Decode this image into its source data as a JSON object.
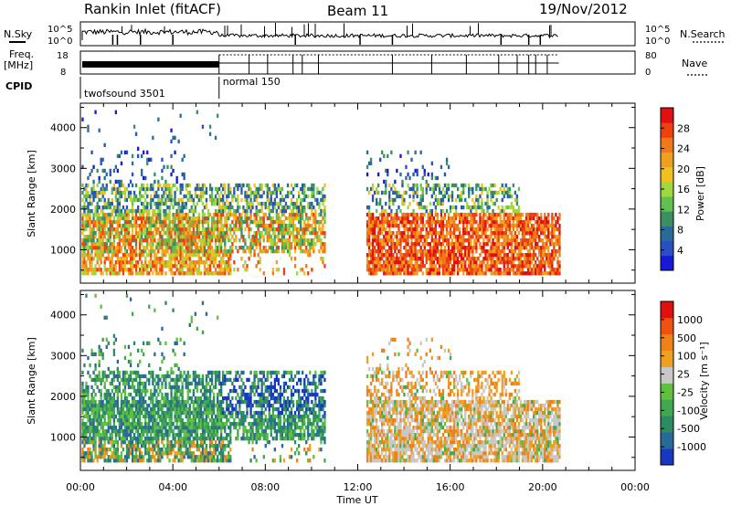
{
  "header": {
    "station": "Rankin Inlet (fitACF)",
    "beam": "Beam 11",
    "date": "19/Nov/2012"
  },
  "top_panels": {
    "nsky_label": "N.Sky",
    "nsky_ticks": [
      "10^5",
      "10^0"
    ],
    "nsearch_label": "N.Search",
    "nsearch_ticks": [
      "10^5",
      "10^0"
    ],
    "freq_label": "Freq.",
    "freq_unit": "[MHz]",
    "freq_ticks": [
      "18",
      "8"
    ],
    "nave_label": "Nave",
    "nave_ticks": [
      "80",
      "0"
    ],
    "cpid_label": "CPID",
    "cpid_segments": [
      {
        "name": "twofsound 3501",
        "start_hour": 0,
        "end_hour": 6.0
      },
      {
        "name": "normal 150",
        "start_hour": 6.0,
        "end_hour": 20.7
      }
    ]
  },
  "chart_data": [
    {
      "type": "heatmap",
      "name": "power",
      "ylabel": "Slant Range [km]",
      "xlabel": "Time UT",
      "ylim": [
        180,
        4600
      ],
      "xlim_hours": [
        0,
        24
      ],
      "y_ticks": [
        1000,
        2000,
        3000,
        4000
      ],
      "x_tick_labels": [
        "00:00",
        "04:00",
        "08:00",
        "12:00",
        "16:00",
        "20:00",
        "00:00"
      ],
      "colorbar": {
        "label": "Power [dB]",
        "ticks": [
          "4",
          "8",
          "12",
          "16",
          "20",
          "24",
          "28"
        ],
        "colors": [
          "#1818d8",
          "#2850c0",
          "#2a6a9a",
          "#3c9060",
          "#60c050",
          "#a0d840",
          "#f0c020",
          "#f0a020",
          "#f07818",
          "#f04010",
          "#e01010"
        ]
      }
    },
    {
      "type": "heatmap",
      "name": "velocity",
      "ylabel": "Slant Range [km]",
      "xlabel": "Time UT",
      "ylim": [
        180,
        4600
      ],
      "xlim_hours": [
        0,
        24
      ],
      "y_ticks": [
        1000,
        2000,
        3000,
        4000
      ],
      "x_tick_labels": [
        "00:00",
        "04:00",
        "08:00",
        "12:00",
        "16:00",
        "20:00",
        "00:00"
      ],
      "colorbar": {
        "label": "Velocity [m s⁻¹]",
        "ticks": [
          "1000",
          "500",
          "100",
          "25",
          "-25",
          "-100",
          "-500",
          "-1000"
        ],
        "colors": [
          "#1838c0",
          "#2a6a9a",
          "#2e8a60",
          "#40a850",
          "#60c040",
          "#c8c8c8",
          "#f0a020",
          "#f08018",
          "#f05010",
          "#e01010"
        ]
      }
    }
  ]
}
